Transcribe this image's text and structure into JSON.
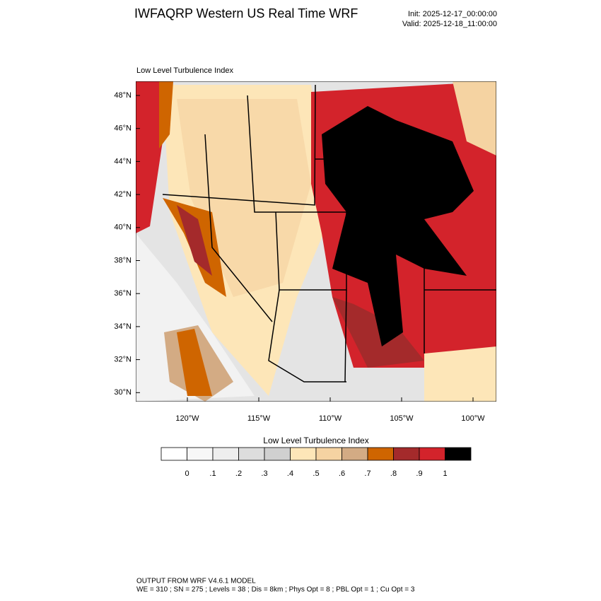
{
  "header": {
    "title": "IWFAQRP Western US Real Time WRF",
    "init": "Init: 2025-12-17_00:00:00",
    "valid": "Valid: 2025-12-18_11:00:00"
  },
  "map": {
    "subtitle": "Low Level Turbulence Index",
    "lat_labels": [
      "48°N",
      "46°N",
      "44°N",
      "42°N",
      "40°N",
      "38°N",
      "36°N",
      "34°N",
      "32°N",
      "30°N"
    ],
    "lon_labels": [
      "120°W",
      "115°W",
      "110°W",
      "105°W",
      "100°W"
    ]
  },
  "colorbar": {
    "title": "Low Level Turbulence Index",
    "colors": [
      "#ffffff",
      "#f7f7f7",
      "#eeeeee",
      "#dddddd",
      "#d0d0d0",
      "#fde6b8",
      "#f5d3a2",
      "#d3ab84",
      "#cf6500",
      "#a42a2b",
      "#d3232b",
      "#000000"
    ],
    "labels": [
      "0",
      ".1",
      ".2",
      ".3",
      ".4",
      ".5",
      ".6",
      ".7",
      ".8",
      ".9",
      "1"
    ]
  },
  "footer": {
    "line1": "OUTPUT FROM WRF V4.6.1 MODEL",
    "line2": "WE = 310 ; SN = 275 ; Levels = 38 ; Dis = 8km ; Phys Opt = 8 ; PBL Opt = 1 ; Cu Opt = 3"
  }
}
